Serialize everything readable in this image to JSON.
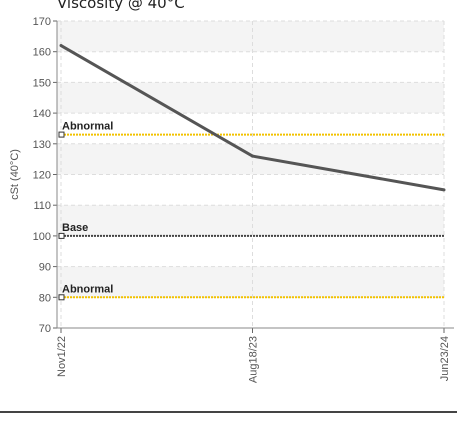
{
  "chart_data": {
    "type": "line",
    "title": "Viscosity @ 40°C",
    "ylabel": "cSt (40°C)",
    "xlabel": "",
    "ylim": [
      70,
      170
    ],
    "yticks": [
      70,
      80,
      90,
      100,
      110,
      120,
      130,
      140,
      150,
      160,
      170
    ],
    "categories": [
      "Nov1/22",
      "Aug18/23",
      "Jun23/24"
    ],
    "grid": true,
    "series": [
      {
        "values": [
          162,
          126,
          115
        ],
        "color": "#555555"
      }
    ],
    "reference_lines": [
      {
        "label": "Abnormal",
        "value": 133,
        "color": "#f2c200"
      },
      {
        "label": "Base",
        "value": 100,
        "color": "#444444"
      },
      {
        "label": "Abnormal",
        "value": 80,
        "color": "#f2c200"
      }
    ]
  }
}
